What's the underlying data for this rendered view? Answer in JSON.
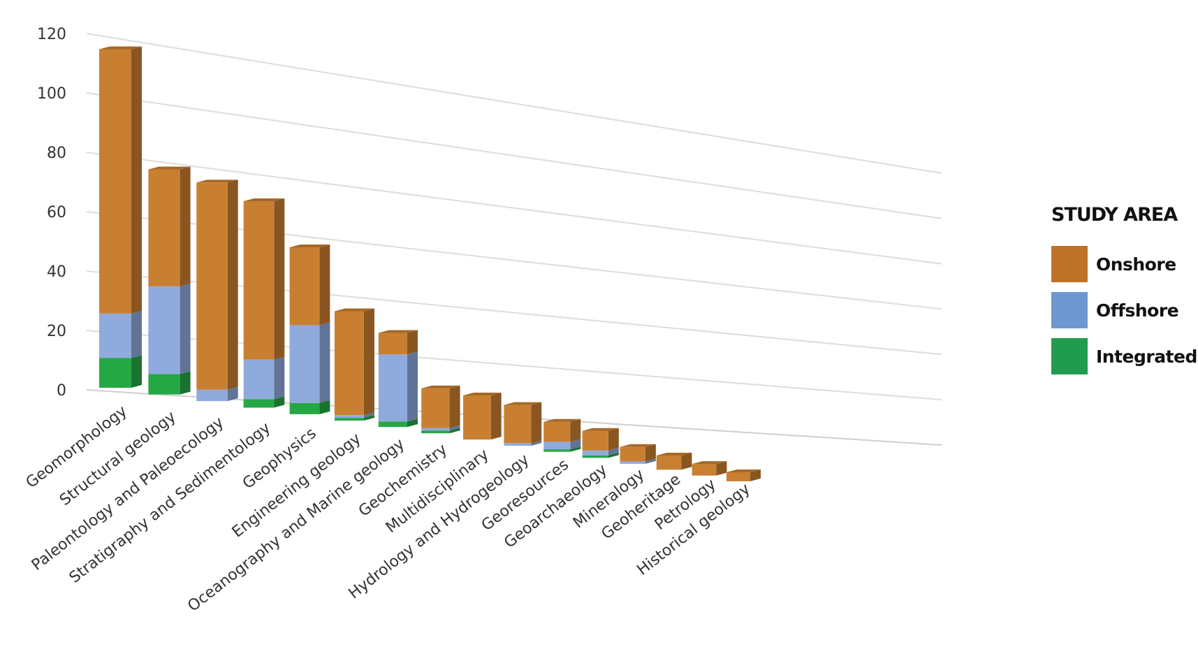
{
  "chart_data": {
    "type": "bar",
    "stacked": true,
    "style": "3d-perspective",
    "ylim": [
      0,
      120
    ],
    "yticks": [
      0,
      20,
      40,
      60,
      80,
      100,
      120
    ],
    "grid": true,
    "legend_position": "right",
    "categories": [
      "Geomorphology",
      "Structural geology",
      "Paleontology and Paleoecology",
      "Stratigraphy and Sedimentology",
      "Geophysics",
      "Engineering geology",
      "Oceanography and Marine geology",
      "Geochemistry",
      "Multidisciplinary",
      "Hydrology and Hydrogeology",
      "Georesources",
      "Geoarchaeology",
      "Mineralogy",
      "Geoheritage",
      "Petrology",
      "Historical geology"
    ],
    "series": [
      {
        "name": "Integrated",
        "color": "#25a744",
        "values": [
          10,
          7,
          0,
          3,
          4,
          1,
          2,
          1,
          0,
          0,
          1,
          1,
          0,
          0,
          0,
          0
        ]
      },
      {
        "name": "Offshore",
        "color": "#8faadc",
        "values": [
          15,
          30,
          4,
          14,
          28,
          1,
          25,
          1,
          0,
          1,
          3,
          2,
          1,
          0,
          0,
          0
        ]
      },
      {
        "name": "Onshore",
        "color": "#c97f31",
        "values": [
          89,
          40,
          72,
          56,
          28,
          38,
          8,
          15,
          17,
          15,
          8,
          8,
          6,
          6,
          5,
          4
        ]
      }
    ],
    "legend_title": "STUDY AREA",
    "legend": [
      "Onshore",
      "Offshore",
      "Integrated"
    ]
  }
}
